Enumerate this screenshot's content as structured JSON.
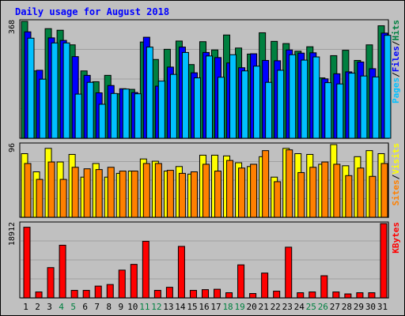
{
  "chart_data": {
    "type": "bar",
    "title": "Daily usage for August 2018",
    "categories": [
      "1",
      "2",
      "3",
      "4",
      "5",
      "6",
      "7",
      "8",
      "9",
      "10",
      "11",
      "12",
      "13",
      "14",
      "15",
      "16",
      "17",
      "18",
      "19",
      "20",
      "21",
      "22",
      "23",
      "24",
      "25",
      "26",
      "27",
      "28",
      "29",
      "30",
      "31"
    ],
    "weekend_days": [
      "4",
      "5",
      "11",
      "12",
      "18",
      "19",
      "25",
      "26"
    ],
    "panels": [
      {
        "id": "hits-files-pages",
        "ymax": 368,
        "ymax_label": "368",
        "side_labels": [
          "Pages",
          "/",
          "Files",
          "/",
          "Hits"
        ],
        "series": [
          {
            "name": "Hits",
            "color": "#008040",
            "values": [
              368,
              212,
              345,
              340,
              294,
              212,
              178,
              198,
              140,
              154,
              303,
              248,
              280,
              306,
              232,
              304,
              278,
              325,
              284,
              265,
              332,
              305,
              298,
              274,
              288,
              190,
              260,
              277,
              245,
              294,
              354
            ]
          },
          {
            "name": "Files",
            "color": "#0000ff",
            "values": [
              335,
              214,
              316,
              308,
              257,
              198,
              143,
              166,
              156,
              144,
              318,
              164,
              224,
              287,
              206,
              270,
              254,
              237,
              222,
              266,
              245,
              244,
              278,
              268,
              269,
              187,
              203,
              209,
              240,
              219,
              331
            ]
          },
          {
            "name": "Pages",
            "color": "#00c0ff",
            "values": [
              315,
              186,
              300,
              300,
              139,
              176,
              107,
              141,
              155,
              140,
              287,
              180,
              201,
              270,
              190,
              259,
              192,
              263,
              212,
              227,
              176,
              214,
              263,
              246,
              256,
              175,
              171,
              205,
              196,
              193,
              324
            ]
          }
        ]
      },
      {
        "id": "visits-sites",
        "ymax": 96,
        "ymax_label": "96",
        "side_labels": [
          "Sites",
          "/",
          "Visits"
        ],
        "series": [
          {
            "name": "Visits",
            "color": "#ffff00",
            "values": [
              84,
              60,
              91,
              73,
              83,
              53,
              71,
              53,
              58,
              61,
              77,
              74,
              61,
              67,
              57,
              82,
              82,
              81,
              72,
              67,
              80,
              53,
              91,
              84,
              83,
              70,
              96,
              68,
              80,
              88,
              84
            ]
          },
          {
            "name": "Sites",
            "color": "#ff8000",
            "values": [
              71,
              50,
              73,
              50,
              66,
              64,
              63,
              66,
              61,
              61,
              71,
              71,
              62,
              58,
              60,
              70,
              61,
              75,
              65,
              70,
              88,
              47,
              89,
              59,
              66,
              73,
              70,
              55,
              65,
              54,
              71
            ]
          }
        ]
      },
      {
        "id": "kbytes",
        "ymax": 18912,
        "ymax_label": "18912",
        "side_labels": [
          "KBytes"
        ],
        "series": [
          {
            "name": "KBytes",
            "color": "#ff0000",
            "values": [
              17980,
              1500,
              7700,
              13400,
              1900,
              1900,
              2990,
              3390,
              7060,
              8520,
              14400,
              1900,
              2690,
              13100,
              1900,
              2090,
              2190,
              1300,
              8400,
              1100,
              6310,
              1700,
              12900,
              1300,
              1500,
              5630,
              1500,
              1000,
              1300,
              1300,
              18912
            ]
          }
        ]
      }
    ]
  },
  "colors": {
    "background": "#c0c0c0",
    "frame": "#000000",
    "panel_shadow": "#808080",
    "grid": "#a0a0a0",
    "title": "#0000ff",
    "weekday_label": "#000000",
    "weekend_label": "#008040",
    "axis_label": "#000000"
  }
}
